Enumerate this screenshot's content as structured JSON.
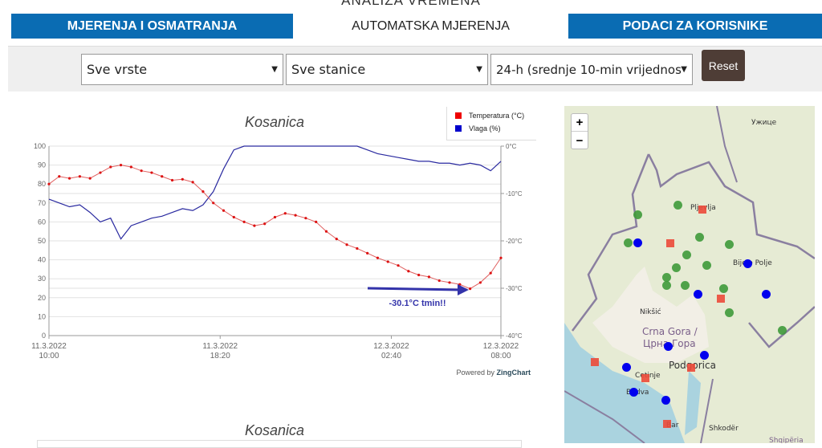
{
  "page_title": "ANALIZA VREMENA",
  "tabs": [
    {
      "label": "MJERENJA I OSMATRANJA",
      "active": false
    },
    {
      "label": "AUTOMATSKA MJERENJA",
      "active": true
    },
    {
      "label": "PODACI ZA KORISNIKE",
      "active": false
    }
  ],
  "filters": {
    "type": "Sve vrste",
    "station": "Sve stanice",
    "period": "24-h (srednje 10-min vrijednos",
    "reset_label": "Reset"
  },
  "colors": {
    "tab_bar": "#0a6cb3",
    "temperature": "#dd1111",
    "humidity": "#2a2aa0",
    "annotation": "#3333aa",
    "reset": "#4e3d36"
  },
  "chart_data": {
    "type": "line",
    "title": "Kosanica",
    "x": [
      "10:00",
      "10:30",
      "11:00",
      "11:30",
      "12:00",
      "12:30",
      "13:00",
      "13:30",
      "14:00",
      "14:30",
      "15:00",
      "15:30",
      "16:00",
      "16:30",
      "17:00",
      "17:30",
      "18:00",
      "18:30",
      "19:00",
      "19:30",
      "20:00",
      "20:30",
      "21:00",
      "21:30",
      "22:00",
      "22:30",
      "23:00",
      "23:30",
      "00:00",
      "00:30",
      "01:00",
      "01:30",
      "02:00",
      "02:30",
      "03:00",
      "03:30",
      "04:00",
      "04:30",
      "05:00",
      "05:30",
      "06:00",
      "06:30",
      "07:00",
      "07:30",
      "08:00"
    ],
    "x_ticks": [
      {
        "label": [
          "11.3.2022",
          "10:00"
        ],
        "minutes": 0
      },
      {
        "label": [
          "11.3.2022",
          "18:20"
        ],
        "minutes": 500
      },
      {
        "label": [
          "12.3.2022",
          "02:40"
        ],
        "minutes": 1000
      },
      {
        "label": [
          "12.3.2022",
          "08:00"
        ],
        "minutes": 1320
      }
    ],
    "series": [
      {
        "name": "Temperatura (°C)",
        "axis": "right",
        "values": [
          -8,
          -6.4,
          -6.8,
          -6.4,
          -6.8,
          -5.6,
          -4.4,
          -4.0,
          -4.4,
          -5.2,
          -5.6,
          -6.4,
          -7.2,
          -7.0,
          -7.6,
          -9.6,
          -12.0,
          -13.6,
          -15.0,
          -16.0,
          -16.8,
          -16.4,
          -15.0,
          -14.2,
          -14.6,
          -15.2,
          -16.0,
          -18.0,
          -19.6,
          -20.8,
          -21.6,
          -22.6,
          -23.6,
          -24.4,
          -25.2,
          -26.4,
          -27.2,
          -27.6,
          -28.4,
          -28.8,
          -29.2,
          -30.1,
          -28.8,
          -26.8,
          -23.6
        ]
      },
      {
        "name": "Vlaga (%)",
        "axis": "left",
        "values": [
          72,
          70,
          68,
          69,
          65,
          60,
          62,
          51,
          58,
          60,
          62,
          63,
          65,
          67,
          66,
          69,
          76,
          88,
          98,
          100,
          100,
          100,
          100,
          100,
          100,
          100,
          100,
          100,
          100,
          100,
          100,
          98,
          96,
          95,
          94,
          93,
          92,
          92,
          91,
          91,
          90,
          91,
          90,
          87,
          92
        ]
      }
    ],
    "y_left": {
      "range": [
        0,
        100
      ],
      "ticks": [
        "0",
        "10",
        "20",
        "30",
        "40",
        "50",
        "60",
        "70",
        "80",
        "90",
        "100"
      ]
    },
    "y_right": {
      "range": [
        -40,
        0
      ],
      "ticks": [
        "0°C",
        "-10°C",
        "-20°C",
        "-30°C",
        "-40°C"
      ]
    },
    "annotation": "-30.1°C tmin!!",
    "legend_position": "top-right",
    "grid": true,
    "credit_prefix": "Powered by",
    "credit_brand": "ZingChart"
  },
  "second_chart_title": "Kosanica",
  "map": {
    "zoom_in": "+",
    "zoom_out": "−",
    "labels": [
      "Ужице",
      "Pljevlja",
      "Bijelo Polje",
      "Nikšić",
      "Crna Gora /",
      "Црна Гора",
      "Podgorica",
      "Cetinje",
      "Budva",
      "Bar",
      "Shkodër",
      "Shqipëria"
    ]
  }
}
